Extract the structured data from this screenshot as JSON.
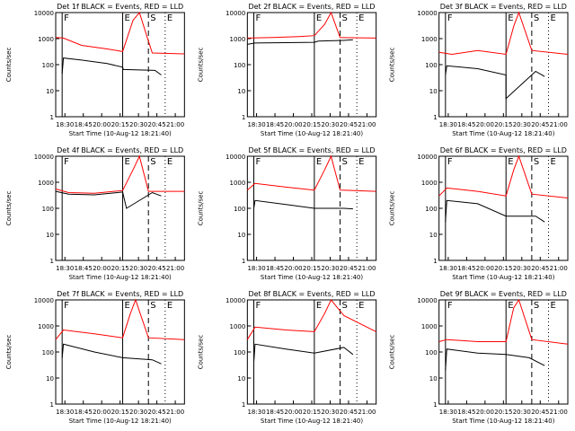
{
  "figure": {
    "subtitle_prefix": "Start Time (",
    "start_time": "10-Aug-12 18:21:40",
    "subtitle_suffix": ")",
    "ylabel": "Counts/sec",
    "xticks": [
      "18:30",
      "18:45",
      "20:00",
      "20:15",
      "20:30",
      "20:45",
      "21:00"
    ],
    "yticks": [
      "1",
      "10",
      "100",
      "1000",
      "10000"
    ],
    "flag_labels": [
      "F",
      "E",
      "S",
      "E"
    ],
    "colors": {
      "events": "#000000",
      "lld": "#ff0000"
    }
  },
  "chart_data": [
    {
      "type": "line",
      "title": "Det 1f BLACK = Events, RED = LLD",
      "xlabel": "Start Time (10-Aug-12 18:21:40)",
      "ylabel": "Counts/sec",
      "yscale": "log",
      "ylim": [
        1,
        10000
      ],
      "x_ticks": [
        "18:30",
        "18:45",
        "20:00",
        "20:15",
        "20:30",
        "20:45",
        "21:00"
      ],
      "series": [
        {
          "name": "Events",
          "color": "#000000",
          "values": [
            [
              0.05,
              45
            ],
            [
              0.06,
              180
            ],
            [
              0.2,
              150
            ],
            [
              0.4,
              110
            ],
            [
              0.52,
              80
            ],
            [
              0.525,
              65
            ],
            [
              0.77,
              60
            ],
            [
              0.82,
              40
            ]
          ]
        },
        {
          "name": "LLD",
          "color": "#ff0000",
          "values": [
            [
              0.0,
              1100
            ],
            [
              0.06,
              1050
            ],
            [
              0.2,
              550
            ],
            [
              0.4,
              400
            ],
            [
              0.52,
              320
            ],
            [
              0.6,
              5000
            ],
            [
              0.65,
              10000
            ],
            [
              0.72,
              800
            ],
            [
              0.75,
              280
            ],
            [
              1.0,
              260
            ]
          ]
        }
      ]
    },
    {
      "type": "line",
      "title": "Det 2f BLACK = Events, RED = LLD",
      "xlabel": "Start Time (10-Aug-12 18:21:40)",
      "ylabel": "Counts/sec",
      "yscale": "log",
      "ylim": [
        1,
        10000
      ],
      "x_ticks": [
        "18:30",
        "18:45",
        "20:00",
        "20:15",
        "20:30",
        "20:45",
        "21:00"
      ],
      "series": [
        {
          "name": "Events",
          "color": "#000000",
          "values": [
            [
              0.0,
              600
            ],
            [
              0.06,
              680
            ],
            [
              0.3,
              700
            ],
            [
              0.52,
              720
            ],
            [
              0.55,
              800
            ],
            [
              0.75,
              850
            ],
            [
              0.82,
              900
            ]
          ]
        },
        {
          "name": "LLD",
          "color": "#ff0000",
          "values": [
            [
              0.0,
              1050
            ],
            [
              0.2,
              1100
            ],
            [
              0.4,
              1200
            ],
            [
              0.52,
              1300
            ],
            [
              0.6,
              3500
            ],
            [
              0.65,
              10000
            ],
            [
              0.72,
              1100
            ],
            [
              1.0,
              1050
            ]
          ]
        }
      ]
    },
    {
      "type": "line",
      "title": "Det 3f BLACK = Events, RED = LLD",
      "xlabel": "Start Time (10-Aug-12 18:21:40)",
      "ylabel": "Counts/sec",
      "yscale": "log",
      "ylim": [
        1,
        10000
      ],
      "x_ticks": [
        "18:30",
        "18:45",
        "20:00",
        "20:15",
        "20:30",
        "20:45",
        "21:00"
      ],
      "series": [
        {
          "name": "Events",
          "color": "#000000",
          "values": [
            [
              0.05,
              40
            ],
            [
              0.06,
              90
            ],
            [
              0.3,
              70
            ],
            [
              0.52,
              40
            ],
            [
              0.52,
              5
            ],
            [
              0.75,
              55
            ],
            [
              0.82,
              35
            ]
          ]
        },
        {
          "name": "LLD",
          "color": "#ff0000",
          "values": [
            [
              0.0,
              300
            ],
            [
              0.1,
              250
            ],
            [
              0.3,
              350
            ],
            [
              0.52,
              250
            ],
            [
              0.58,
              3000
            ],
            [
              0.62,
              10000
            ],
            [
              0.72,
              350
            ],
            [
              1.0,
              250
            ]
          ]
        }
      ]
    },
    {
      "type": "line",
      "title": "Det 4f BLACK = Events, RED = LLD",
      "xlabel": "Start Time (10-Aug-12 18:21:40)",
      "ylabel": "Counts/sec",
      "yscale": "log",
      "ylim": [
        1,
        10000
      ],
      "x_ticks": [
        "18:30",
        "18:45",
        "20:00",
        "20:15",
        "20:30",
        "20:45",
        "21:00"
      ],
      "series": [
        {
          "name": "Events",
          "color": "#000000",
          "values": [
            [
              0.0,
              450
            ],
            [
              0.1,
              350
            ],
            [
              0.3,
              330
            ],
            [
              0.52,
              420
            ],
            [
              0.55,
              100
            ],
            [
              0.75,
              400
            ],
            [
              0.82,
              300
            ]
          ]
        },
        {
          "name": "LLD",
          "color": "#ff0000",
          "values": [
            [
              0.0,
              550
            ],
            [
              0.1,
              400
            ],
            [
              0.3,
              380
            ],
            [
              0.52,
              480
            ],
            [
              0.6,
              3000
            ],
            [
              0.65,
              10000
            ],
            [
              0.72,
              450
            ],
            [
              1.0,
              450
            ]
          ]
        }
      ]
    },
    {
      "type": "line",
      "title": "Det 5f BLACK = Events, RED = LLD",
      "xlabel": "Start Time (10-Aug-12 18:21:40)",
      "ylabel": "Counts/sec",
      "yscale": "log",
      "ylim": [
        1,
        10000
      ],
      "x_ticks": [
        "18:30",
        "18:45",
        "20:00",
        "20:15",
        "20:30",
        "20:45",
        "21:00"
      ],
      "series": [
        {
          "name": "Events",
          "color": "#000000",
          "values": [
            [
              0.05,
              100
            ],
            [
              0.06,
              200
            ],
            [
              0.3,
              140
            ],
            [
              0.52,
              100
            ],
            [
              0.75,
              100
            ],
            [
              0.82,
              95
            ]
          ]
        },
        {
          "name": "LLD",
          "color": "#ff0000",
          "values": [
            [
              0.0,
              500
            ],
            [
              0.06,
              900
            ],
            [
              0.3,
              650
            ],
            [
              0.52,
              500
            ],
            [
              0.6,
              3000
            ],
            [
              0.65,
              10000
            ],
            [
              0.72,
              500
            ],
            [
              1.0,
              450
            ]
          ]
        }
      ]
    },
    {
      "type": "line",
      "title": "Det 6f BLACK = Events, RED = LLD",
      "xlabel": "Start Time (10-Aug-12 18:21:40)",
      "ylabel": "Counts/sec",
      "yscale": "log",
      "ylim": [
        1,
        10000
      ],
      "x_ticks": [
        "18:30",
        "18:45",
        "20:00",
        "20:15",
        "20:30",
        "20:45",
        "21:00"
      ],
      "series": [
        {
          "name": "Events",
          "color": "#000000",
          "values": [
            [
              0.05,
              30
            ],
            [
              0.06,
              200
            ],
            [
              0.3,
              150
            ],
            [
              0.52,
              50
            ],
            [
              0.75,
              50
            ],
            [
              0.82,
              30
            ]
          ]
        },
        {
          "name": "LLD",
          "color": "#ff0000",
          "values": [
            [
              0.0,
              300
            ],
            [
              0.06,
              600
            ],
            [
              0.3,
              450
            ],
            [
              0.52,
              300
            ],
            [
              0.58,
              3000
            ],
            [
              0.62,
              10000
            ],
            [
              0.72,
              350
            ],
            [
              1.0,
              250
            ]
          ]
        }
      ]
    },
    {
      "type": "line",
      "title": "Det 7f BLACK = Events, RED = LLD",
      "xlabel": "Start Time (10-Aug-12 18:21:40)",
      "ylabel": "Counts/sec",
      "yscale": "log",
      "ylim": [
        1,
        10000
      ],
      "x_ticks": [
        "18:30",
        "18:45",
        "20:00",
        "20:15",
        "20:30",
        "20:45",
        "21:00"
      ],
      "series": [
        {
          "name": "Events",
          "color": "#000000",
          "values": [
            [
              0.05,
              60
            ],
            [
              0.06,
              200
            ],
            [
              0.3,
              100
            ],
            [
              0.52,
              60
            ],
            [
              0.75,
              50
            ],
            [
              0.82,
              35
            ]
          ]
        },
        {
          "name": "LLD",
          "color": "#ff0000",
          "values": [
            [
              0.0,
              300
            ],
            [
              0.06,
              700
            ],
            [
              0.3,
              500
            ],
            [
              0.52,
              350
            ],
            [
              0.58,
              3000
            ],
            [
              0.62,
              10000
            ],
            [
              0.72,
              350
            ],
            [
              1.0,
              300
            ]
          ]
        }
      ]
    },
    {
      "type": "line",
      "title": "Det 8f BLACK = Events, RED = LLD",
      "xlabel": "Start Time (10-Aug-12 18:21:40)",
      "ylabel": "Counts/sec",
      "yscale": "log",
      "ylim": [
        1,
        10000
      ],
      "x_ticks": [
        "18:30",
        "18:45",
        "20:00",
        "20:15",
        "20:30",
        "20:45",
        "21:00"
      ],
      "series": [
        {
          "name": "Events",
          "color": "#000000",
          "values": [
            [
              0.05,
              40
            ],
            [
              0.06,
              200
            ],
            [
              0.3,
              130
            ],
            [
              0.52,
              90
            ],
            [
              0.75,
              150
            ],
            [
              0.82,
              80
            ]
          ]
        },
        {
          "name": "LLD",
          "color": "#ff0000",
          "values": [
            [
              0.0,
              300
            ],
            [
              0.06,
              900
            ],
            [
              0.3,
              700
            ],
            [
              0.52,
              600
            ],
            [
              0.6,
              3000
            ],
            [
              0.65,
              10000
            ],
            [
              0.75,
              2500
            ],
            [
              1.0,
              600
            ]
          ]
        }
      ]
    },
    {
      "type": "line",
      "title": "Det 9f BLACK = Events, RED = LLD",
      "xlabel": "Start Time (10-Aug-12 18:21:40)",
      "ylabel": "Counts/sec",
      "yscale": "log",
      "ylim": [
        1,
        10000
      ],
      "x_ticks": [
        "18:30",
        "18:45",
        "20:00",
        "20:15",
        "20:30",
        "20:45",
        "21:00"
      ],
      "series": [
        {
          "name": "Events",
          "color": "#000000",
          "values": [
            [
              0.05,
              20
            ],
            [
              0.06,
              130
            ],
            [
              0.3,
              90
            ],
            [
              0.52,
              80
            ],
            [
              0.7,
              60
            ],
            [
              0.82,
              30
            ]
          ]
        },
        {
          "name": "LLD",
          "color": "#ff0000",
          "values": [
            [
              0.0,
              250
            ],
            [
              0.06,
              300
            ],
            [
              0.3,
              250
            ],
            [
              0.52,
              250
            ],
            [
              0.58,
              5000
            ],
            [
              0.62,
              10000
            ],
            [
              0.72,
              300
            ],
            [
              1.0,
              200
            ]
          ]
        }
      ]
    }
  ]
}
